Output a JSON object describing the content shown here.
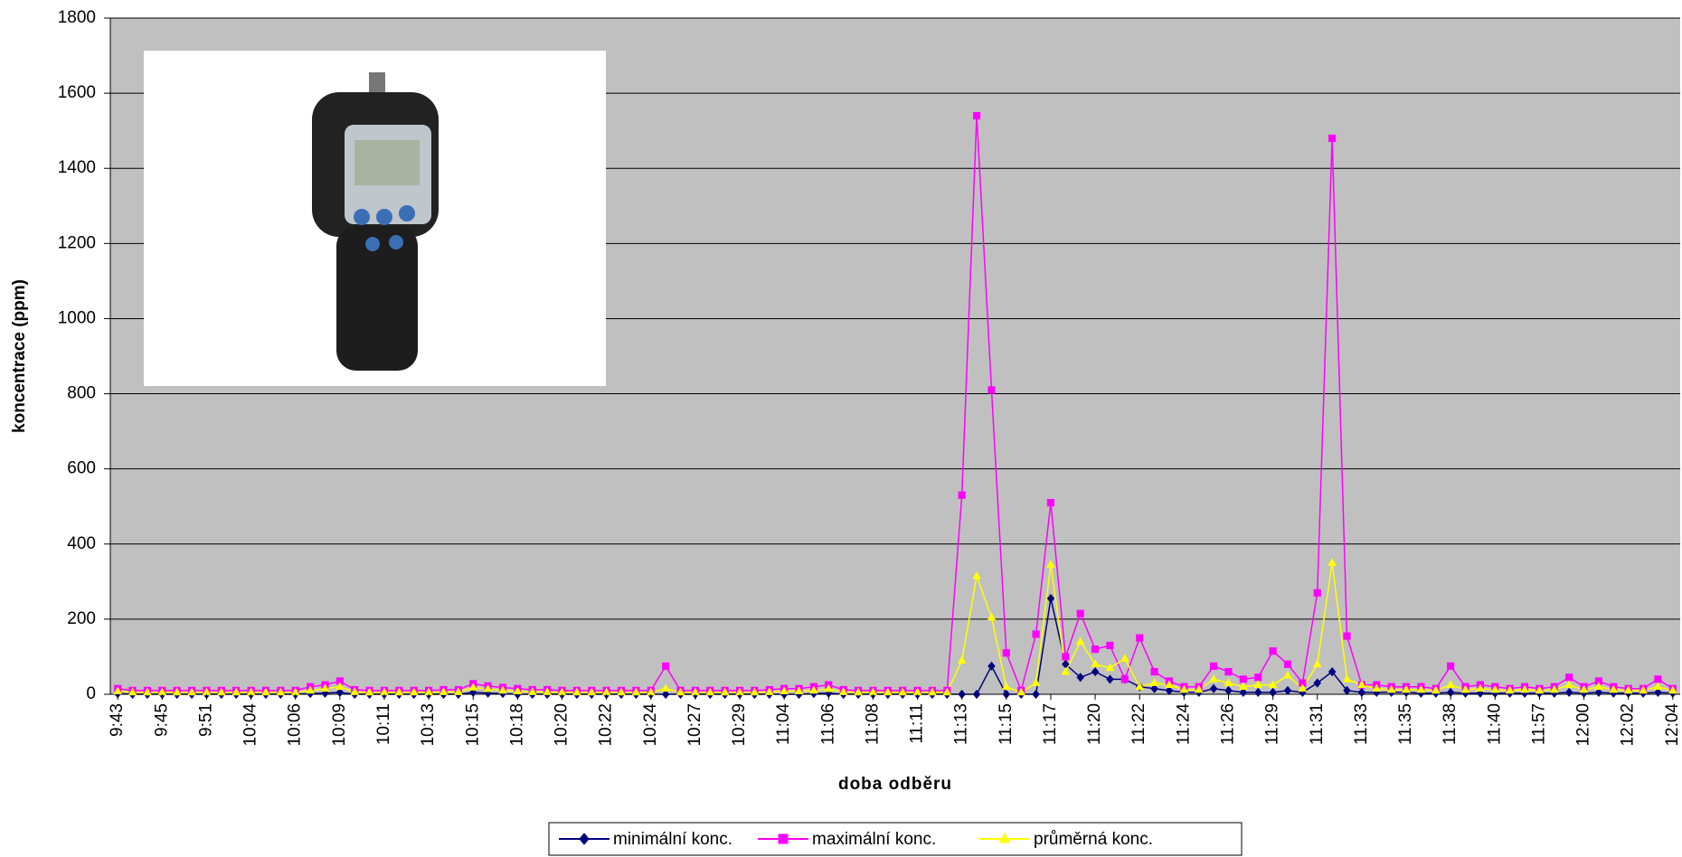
{
  "chart_data": {
    "type": "line",
    "ylabel": "koncentrace (ppm)",
    "xlabel": "doba odběru",
    "ylim": [
      0,
      1800
    ],
    "yticks": [
      0,
      200,
      400,
      600,
      800,
      1000,
      1200,
      1400,
      1600,
      1800
    ],
    "grid": true,
    "categories": [
      "9:43",
      null,
      null,
      "9:45",
      null,
      null,
      "9:51",
      null,
      null,
      "10:04",
      null,
      null,
      "10:06",
      null,
      null,
      "10:09",
      null,
      null,
      "10:11",
      null,
      null,
      "10:13",
      null,
      null,
      "10:15",
      null,
      null,
      "10:18",
      null,
      null,
      "10:20",
      null,
      null,
      "10:22",
      null,
      null,
      "10:24",
      null,
      null,
      "10:27",
      null,
      null,
      "10:29",
      null,
      null,
      "11:04",
      null,
      null,
      "11:06",
      null,
      null,
      "11:08",
      null,
      null,
      "11:11",
      null,
      null,
      "11:13",
      null,
      null,
      "11:15",
      null,
      null,
      "11:17",
      null,
      null,
      "11:20",
      null,
      null,
      "11:22",
      null,
      null,
      "11:24",
      null,
      null,
      "11:26",
      null,
      null,
      "11:29",
      null,
      null,
      "11:31",
      null,
      null,
      "11:33",
      null,
      null,
      "11:35",
      null,
      null,
      "11:38",
      null,
      null,
      "11:40",
      null,
      null,
      "11:57",
      null,
      null,
      "12:00",
      null,
      null,
      "12:02",
      null,
      null,
      "12:04"
    ],
    "series": [
      {
        "name": "minimální konc.",
        "color": "#000080",
        "marker": "diamond",
        "values": [
          2,
          0,
          0,
          0,
          0,
          0,
          0,
          0,
          0,
          0,
          0,
          0,
          0,
          2,
          3,
          5,
          0,
          0,
          0,
          0,
          0,
          0,
          0,
          0,
          5,
          3,
          2,
          0,
          0,
          0,
          0,
          0,
          0,
          0,
          0,
          0,
          0,
          0,
          0,
          0,
          0,
          0,
          0,
          0,
          0,
          0,
          0,
          2,
          3,
          0,
          0,
          0,
          0,
          0,
          0,
          0,
          0,
          0,
          0,
          75,
          0,
          0,
          0,
          255,
          80,
          45,
          60,
          40,
          40,
          20,
          15,
          10,
          5,
          5,
          15,
          10,
          5,
          5,
          5,
          10,
          5,
          30,
          60,
          10,
          5,
          5,
          5,
          5,
          3,
          3,
          5,
          3,
          3,
          3,
          3,
          3,
          3,
          3,
          5,
          3,
          5,
          3,
          3,
          3,
          5,
          3
        ]
      },
      {
        "name": "maximální konc.",
        "color": "#ff00ff",
        "marker": "square",
        "values": [
          15,
          10,
          10,
          10,
          10,
          10,
          10,
          10,
          10,
          10,
          10,
          10,
          10,
          20,
          25,
          35,
          12,
          10,
          10,
          10,
          10,
          10,
          12,
          12,
          28,
          22,
          18,
          15,
          12,
          12,
          10,
          10,
          10,
          10,
          10,
          10,
          10,
          75,
          10,
          10,
          10,
          10,
          10,
          10,
          12,
          15,
          15,
          20,
          25,
          12,
          10,
          10,
          10,
          10,
          10,
          10,
          10,
          530,
          1540,
          810,
          110,
          10,
          160,
          510,
          100,
          215,
          120,
          130,
          40,
          150,
          60,
          35,
          20,
          20,
          75,
          60,
          40,
          45,
          115,
          80,
          30,
          270,
          1480,
          155,
          25,
          25,
          20,
          20,
          20,
          15,
          75,
          20,
          25,
          20,
          15,
          20,
          15,
          20,
          45,
          20,
          35,
          20,
          15,
          15,
          40,
          15
        ]
      },
      {
        "name": "průměrná konc.",
        "color": "#ffff00",
        "marker": "triangle",
        "values": [
          8,
          5,
          5,
          5,
          5,
          5,
          5,
          5,
          5,
          5,
          5,
          5,
          5,
          10,
          15,
          20,
          6,
          5,
          5,
          5,
          5,
          5,
          6,
          6,
          18,
          14,
          10,
          8,
          6,
          6,
          5,
          5,
          5,
          5,
          5,
          5,
          5,
          15,
          5,
          5,
          5,
          5,
          5,
          5,
          6,
          8,
          8,
          10,
          14,
          6,
          5,
          5,
          5,
          5,
          5,
          5,
          5,
          90,
          315,
          205,
          20,
          5,
          30,
          345,
          60,
          140,
          80,
          70,
          95,
          20,
          30,
          25,
          12,
          12,
          40,
          30,
          20,
          25,
          25,
          50,
          15,
          80,
          350,
          40,
          25,
          15,
          12,
          12,
          12,
          10,
          25,
          12,
          15,
          12,
          10,
          12,
          10,
          12,
          25,
          12,
          20,
          12,
          10,
          10,
          20,
          10
        ]
      }
    ]
  }
}
